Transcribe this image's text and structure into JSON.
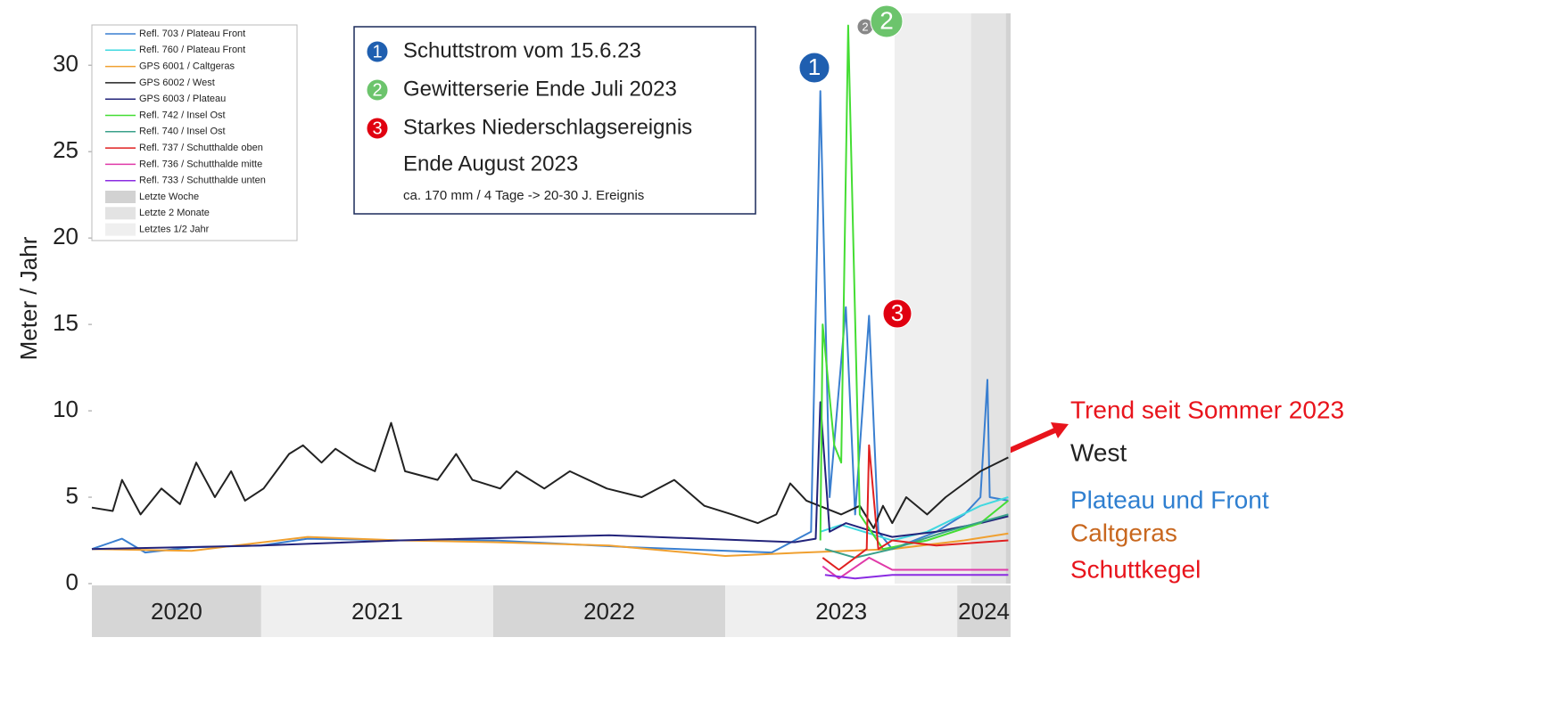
{
  "chart_data": {
    "type": "line",
    "ylabel": "Meter / Jahr",
    "xlim": [
      2020.27,
      2024.23
    ],
    "ylim": [
      0,
      33
    ],
    "yticks": [
      0,
      5,
      10,
      15,
      20,
      25,
      30
    ],
    "year_bands": [
      {
        "label": "2020",
        "from": 2020.27,
        "to": 2021,
        "color": "#d6d6d6"
      },
      {
        "label": "2021",
        "from": 2021,
        "to": 2022,
        "color": "#efefef"
      },
      {
        "label": "2022",
        "from": 2022,
        "to": 2023,
        "color": "#d6d6d6"
      },
      {
        "label": "2023",
        "from": 2023,
        "to": 2024,
        "color": "#efefef"
      },
      {
        "label": "2024",
        "from": 2024,
        "to": 2024.23,
        "color": "#d6d6d6"
      }
    ],
    "shaded_regions": [
      {
        "name": "Letzte Woche",
        "color": "#d2d2d2",
        "from": 2024.21,
        "to": 2024.23
      },
      {
        "name": "Letzte 2 Monate",
        "color": "#e3e3e3",
        "from": 2024.06,
        "to": 2024.23
      },
      {
        "name": "Letztes 1/2 Jahr",
        "color": "#efefef",
        "from": 2023.73,
        "to": 2024.23
      }
    ],
    "series": [
      {
        "name": "Refl. 703 / Plateau Front",
        "color": "#3a7fd0",
        "x": [
          2020.27,
          2020.4,
          2020.5,
          2020.7,
          2021.0,
          2021.2,
          2021.6,
          2022.0,
          2022.6,
          2023.2,
          2023.37,
          2023.41,
          2023.45,
          2023.52,
          2023.56,
          2023.62,
          2023.66,
          2023.72,
          2023.91,
          2024.03,
          2024.1,
          2024.13,
          2024.14,
          2024.22
        ],
        "values": [
          2.0,
          2.6,
          1.8,
          2.1,
          2.2,
          2.6,
          2.5,
          2.5,
          2.1,
          1.8,
          3.0,
          28.5,
          5.0,
          16.0,
          4.0,
          15.5,
          3.0,
          2.0,
          3.0,
          4.0,
          5.0,
          11.8,
          5.0,
          4.8
        ]
      },
      {
        "name": "Refl. 760 / Plateau Front",
        "color": "#40d8e0",
        "x": [
          2023.41,
          2023.5,
          2023.72,
          2023.87,
          2024.1,
          2024.22
        ],
        "values": [
          3.0,
          3.4,
          2.5,
          3.0,
          4.5,
          5.0
        ]
      },
      {
        "name": "GPS 6001 / Caltgeras",
        "color": "#f0a030",
        "x": [
          2020.27,
          2020.7,
          2021.2,
          2021.6,
          2022.0,
          2022.5,
          2023.0,
          2023.34,
          2023.72,
          2024.03,
          2024.22
        ],
        "values": [
          2.0,
          1.9,
          2.7,
          2.5,
          2.4,
          2.2,
          1.6,
          1.8,
          2.0,
          2.5,
          2.9
        ]
      },
      {
        "name": "GPS 6002 / West",
        "color": "#222222",
        "x": [
          2020.27,
          2020.36,
          2020.4,
          2020.48,
          2020.57,
          2020.65,
          2020.72,
          2020.8,
          2020.87,
          2020.93,
          2021.01,
          2021.12,
          2021.18,
          2021.26,
          2021.32,
          2021.41,
          2021.49,
          2021.56,
          2021.62,
          2021.76,
          2021.84,
          2021.91,
          2022.03,
          2022.1,
          2022.22,
          2022.33,
          2022.49,
          2022.64,
          2022.78,
          2022.91,
          2023.03,
          2023.14,
          2023.22,
          2023.28,
          2023.35,
          2023.5,
          2023.58,
          2023.64,
          2023.68,
          2023.72,
          2023.78,
          2023.87,
          2023.95,
          2024.03,
          2024.1,
          2024.22
        ],
        "values": [
          4.4,
          4.2,
          6.0,
          4.0,
          5.5,
          4.6,
          7.0,
          5.0,
          6.5,
          4.8,
          5.5,
          7.5,
          8.0,
          7.0,
          7.8,
          7.0,
          6.5,
          9.3,
          6.5,
          6.0,
          7.5,
          6.0,
          5.5,
          6.5,
          5.5,
          6.5,
          5.5,
          5.0,
          6.0,
          4.5,
          4.0,
          3.5,
          4.0,
          5.8,
          4.8,
          4.0,
          4.5,
          3.2,
          4.5,
          3.5,
          5.0,
          4.0,
          5.0,
          5.8,
          6.5,
          7.3
        ]
      },
      {
        "name": "GPS 6003 / Plateau",
        "color": "#22237a",
        "x": [
          2020.27,
          2021.0,
          2021.6,
          2022.5,
          2023.3,
          2023.39,
          2023.41,
          2023.45,
          2023.52,
          2023.64,
          2023.72,
          2023.91,
          2024.1,
          2024.22
        ],
        "values": [
          2.0,
          2.2,
          2.5,
          2.8,
          2.4,
          2.6,
          10.5,
          3.0,
          3.5,
          3.0,
          2.7,
          3.0,
          3.5,
          3.9
        ]
      },
      {
        "name": "Refl. 742 / Insel Ost",
        "color": "#44dd33",
        "x": [
          2023.41,
          2023.42,
          2023.47,
          2023.5,
          2023.53,
          2023.58,
          2023.68,
          2023.87,
          2024.1,
          2024.22
        ],
        "values": [
          2.5,
          15.0,
          8.0,
          7.0,
          32.3,
          4.0,
          2.0,
          2.5,
          3.5,
          4.8
        ]
      },
      {
        "name": "Refl. 740 / Insel Ost",
        "color": "#3aa08a",
        "x": [
          2023.43,
          2023.56,
          2023.72,
          2023.95,
          2024.22
        ],
        "values": [
          2.0,
          1.5,
          2.0,
          3.0,
          4.0
        ]
      },
      {
        "name": "Refl. 737 / Schutthalde oben",
        "color": "#e02020",
        "x": [
          2023.42,
          2023.49,
          2023.61,
          2023.62,
          2023.66,
          2023.72,
          2023.91,
          2024.22
        ],
        "values": [
          1.5,
          0.8,
          2.0,
          8.0,
          2.0,
          2.5,
          2.2,
          2.5
        ]
      },
      {
        "name": "Refl. 736 / Schutthalde mitte",
        "color": "#e03aa8",
        "x": [
          2023.42,
          2023.49,
          2023.62,
          2023.72,
          2024.22
        ],
        "values": [
          1.0,
          0.3,
          1.5,
          0.8,
          0.8
        ]
      },
      {
        "name": "Refl. 733 / Schutthalde unten",
        "color": "#8a2be2",
        "x": [
          2023.43,
          2023.56,
          2023.72,
          2024.22
        ],
        "values": [
          0.5,
          0.3,
          0.5,
          0.5
        ]
      }
    ],
    "events": [
      {
        "number": "1",
        "color": "#1f5fb0",
        "lines": [
          "Schuttstrom vom 15.6.23"
        ]
      },
      {
        "number": "2",
        "color": "#6cc46c",
        "lines": [
          "Gewitterserie Ende Juli 2023"
        ]
      },
      {
        "number": "3",
        "color": "#e00010",
        "lines": [
          "Starkes Niederschlagsereignis",
          "Ende August 2023"
        ]
      }
    ],
    "note": "ca. 170 mm / 4 Tage -> 20-30 J. Ereignis",
    "trend_labels": [
      {
        "text": "Trend seit Sommer 2023",
        "color": "#e8141c"
      },
      {
        "text": "West",
        "color": "#222222"
      },
      {
        "text": "Plateau und Front",
        "color": "#2f7fd0"
      },
      {
        "text": "Caltgeras",
        "color": "#c8671e"
      },
      {
        "text": "Schuttkegel",
        "color": "#e8141c"
      }
    ]
  }
}
